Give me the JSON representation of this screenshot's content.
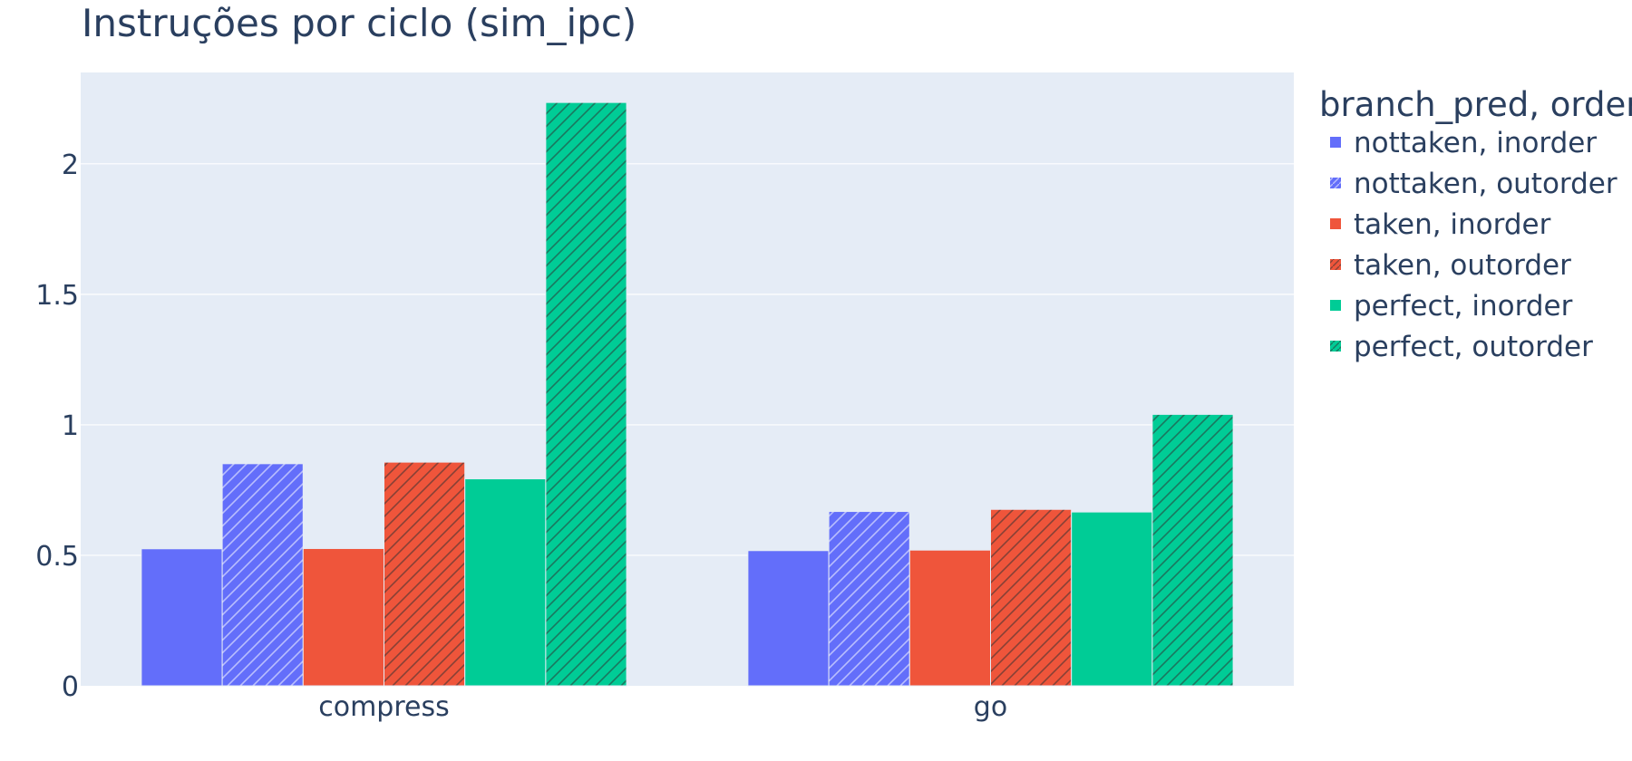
{
  "chart_data": {
    "type": "bar",
    "title": "Instruções por ciclo (sim_ipc)",
    "xlabel": "",
    "ylabel": "",
    "categories": [
      "compress",
      "go"
    ],
    "ylim": [
      0,
      2.35
    ],
    "yticks": [
      0,
      0.5,
      1,
      1.5,
      2
    ],
    "ytick_labels": [
      "0",
      "0.5",
      "1",
      "1.5",
      "2"
    ],
    "grid": true,
    "legend": {
      "title": "branch_pred, order",
      "placement": "right"
    },
    "series": [
      {
        "name": "nottaken, inorder",
        "color": "#636efa",
        "pattern": "none",
        "values": [
          0.525,
          0.518
        ]
      },
      {
        "name": "nottaken, outorder",
        "color": "#636efa",
        "pattern": "hatch",
        "values": [
          0.851,
          0.668
        ]
      },
      {
        "name": "taken, inorder",
        "color": "#ef553b",
        "pattern": "none",
        "values": [
          0.526,
          0.52
        ]
      },
      {
        "name": "taken, outorder",
        "color": "#ef553b",
        "pattern": "hatch",
        "values": [
          0.857,
          0.676
        ]
      },
      {
        "name": "perfect, inorder",
        "color": "#00cc96",
        "pattern": "none",
        "values": [
          0.793,
          0.666
        ]
      },
      {
        "name": "perfect, outorder",
        "color": "#00cc96",
        "pattern": "hatch",
        "values": [
          2.235,
          1.04
        ]
      }
    ]
  }
}
